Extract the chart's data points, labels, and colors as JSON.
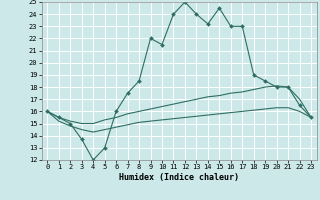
{
  "title": "",
  "xlabel": "Humidex (Indice chaleur)",
  "background_color": "#cce8e8",
  "grid_color": "#ffffff",
  "line_color": "#2e6e62",
  "xlim": [
    -0.5,
    23.5
  ],
  "ylim": [
    12,
    25
  ],
  "xticks": [
    0,
    1,
    2,
    3,
    4,
    5,
    6,
    7,
    8,
    9,
    10,
    11,
    12,
    13,
    14,
    15,
    16,
    17,
    18,
    19,
    20,
    21,
    22,
    23
  ],
  "yticks": [
    12,
    13,
    14,
    15,
    16,
    17,
    18,
    19,
    20,
    21,
    22,
    23,
    24,
    25
  ],
  "series1_x": [
    0,
    1,
    2,
    3,
    4,
    5,
    6,
    7,
    8,
    9,
    10,
    11,
    12,
    13,
    14,
    15,
    16,
    17,
    18,
    19,
    20,
    21,
    22,
    23
  ],
  "series1_y": [
    16.0,
    15.5,
    15.0,
    13.7,
    12.0,
    13.0,
    16.0,
    17.5,
    18.5,
    22.0,
    21.5,
    24.0,
    25.0,
    24.0,
    23.2,
    24.5,
    23.0,
    23.0,
    19.0,
    18.5,
    18.0,
    18.0,
    16.5,
    15.5
  ],
  "series2_x": [
    0,
    1,
    2,
    3,
    4,
    5,
    6,
    7,
    8,
    9,
    10,
    11,
    12,
    13,
    14,
    15,
    16,
    17,
    18,
    19,
    20,
    21,
    22,
    23
  ],
  "series2_y": [
    16.0,
    15.5,
    15.2,
    15.0,
    15.0,
    15.3,
    15.5,
    15.8,
    16.0,
    16.2,
    16.4,
    16.6,
    16.8,
    17.0,
    17.2,
    17.3,
    17.5,
    17.6,
    17.8,
    18.0,
    18.1,
    18.0,
    17.0,
    15.5
  ],
  "series3_x": [
    0,
    1,
    2,
    3,
    4,
    5,
    6,
    7,
    8,
    9,
    10,
    11,
    12,
    13,
    14,
    15,
    16,
    17,
    18,
    19,
    20,
    21,
    22,
    23
  ],
  "series3_y": [
    16.0,
    15.2,
    14.8,
    14.5,
    14.3,
    14.5,
    14.7,
    14.9,
    15.1,
    15.2,
    15.3,
    15.4,
    15.5,
    15.6,
    15.7,
    15.8,
    15.9,
    16.0,
    16.1,
    16.2,
    16.3,
    16.3,
    16.0,
    15.5
  ]
}
